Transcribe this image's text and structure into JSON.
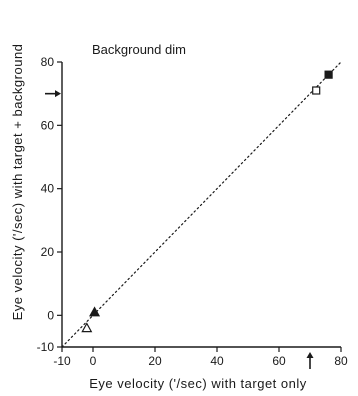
{
  "chart_data": {
    "type": "scatter",
    "annotation": "Background dim",
    "xlabel": "Eye velocity ('/sec) with target only",
    "ylabel": "Eye velocity ('/sec) with target + background",
    "xlim": [
      -10,
      80
    ],
    "ylim": [
      -10,
      80
    ],
    "x_ticks": [
      -10,
      0,
      20,
      40,
      60,
      80
    ],
    "y_ticks": [
      -10,
      0,
      20,
      40,
      60,
      80
    ],
    "points": [
      {
        "x": -2,
        "y": -4,
        "marker": "open-triangle"
      },
      {
        "x": 0.5,
        "y": 1,
        "marker": "filled-triangle"
      },
      {
        "x": 72,
        "y": 71,
        "marker": "open-square"
      },
      {
        "x": 76,
        "y": 76,
        "marker": "filled-square"
      }
    ],
    "reference_line": {
      "style": "dotted",
      "from": [
        -10,
        -10
      ],
      "to": [
        80,
        80
      ]
    },
    "arrow_markers": [
      {
        "axis": "y",
        "value": 70
      },
      {
        "axis": "x",
        "value": 70
      }
    ],
    "grid": false,
    "colors": {
      "ink": "#1a1a1a",
      "background": "#ffffff"
    }
  }
}
